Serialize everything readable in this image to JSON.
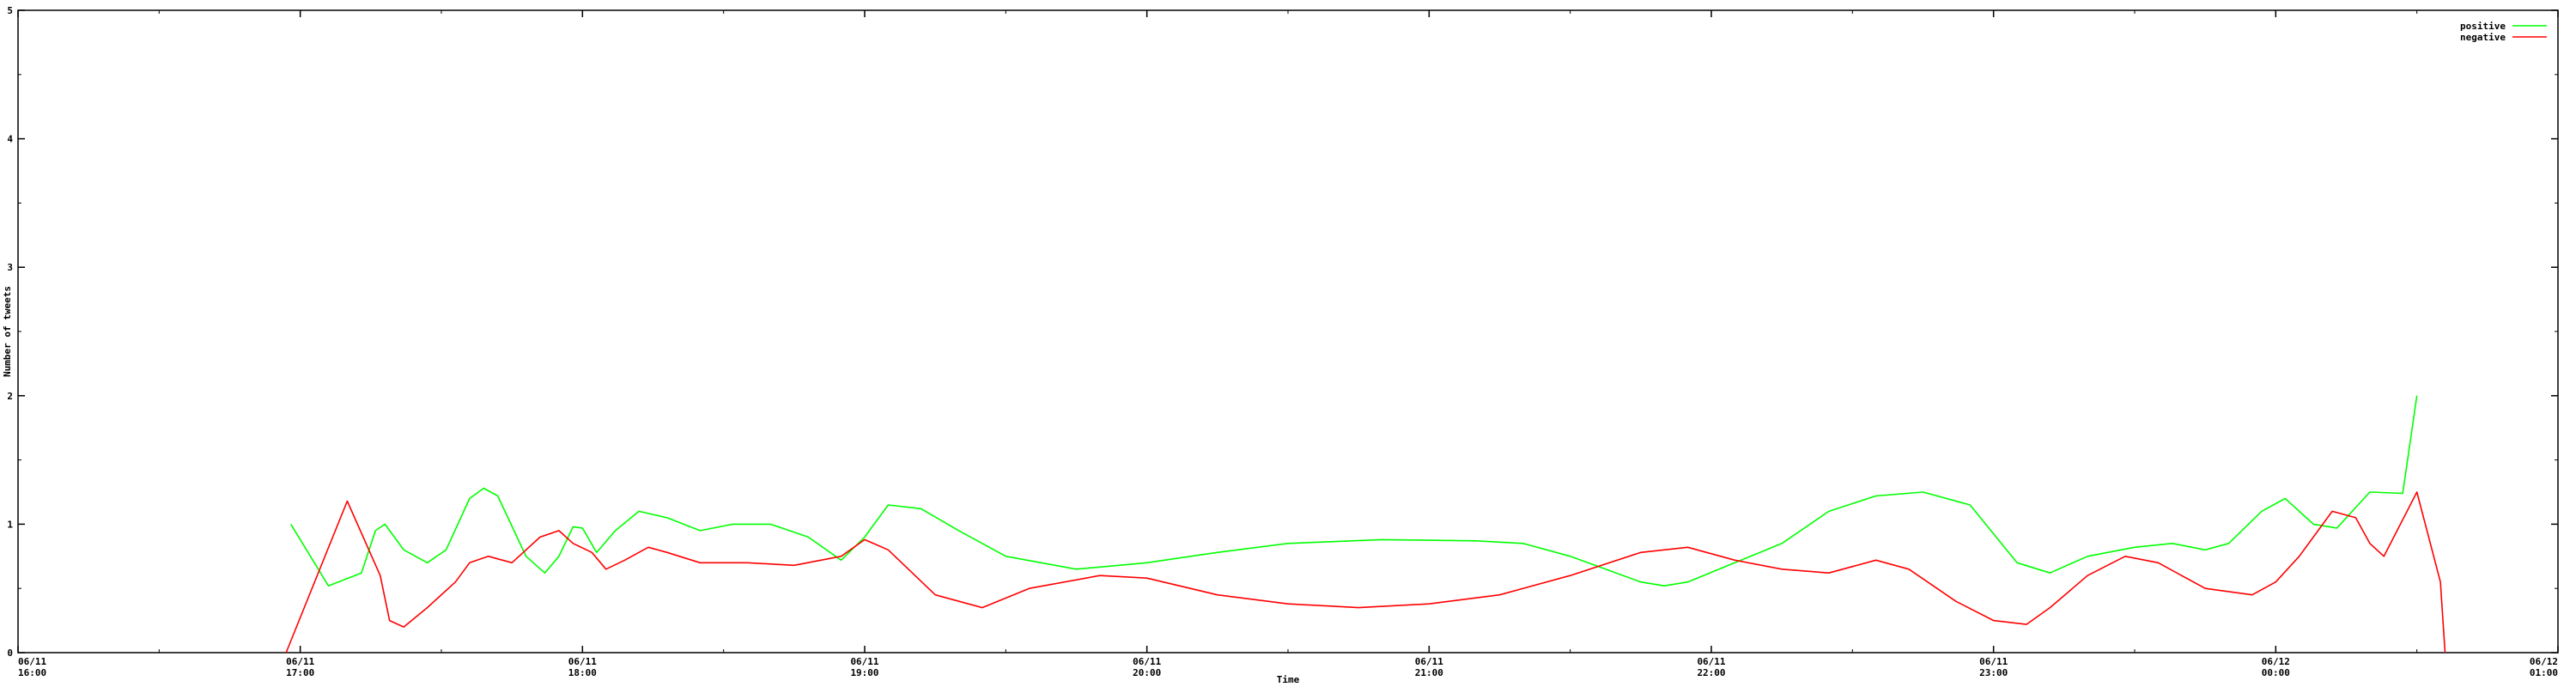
{
  "chart_data": {
    "type": "line",
    "title": "",
    "xlabel": "Time",
    "ylabel": "Number of tweets",
    "x_range": [
      "06/11 16:00",
      "06/12 01:00"
    ],
    "ylim": [
      0,
      5
    ],
    "grid": false,
    "legend_position": "top-right",
    "y_ticks": [
      "0",
      "1",
      "2",
      "3",
      "4",
      "5"
    ],
    "x_ticks": [
      {
        "date": "06/11",
        "time": "16:00"
      },
      {
        "date": "06/11",
        "time": "17:00"
      },
      {
        "date": "06/11",
        "time": "18:00"
      },
      {
        "date": "06/11",
        "time": "19:00"
      },
      {
        "date": "06/11",
        "time": "20:00"
      },
      {
        "date": "06/11",
        "time": "21:00"
      },
      {
        "date": "06/11",
        "time": "22:00"
      },
      {
        "date": "06/11",
        "time": "23:00"
      },
      {
        "date": "06/12",
        "time": "00:00"
      },
      {
        "date": "06/12",
        "time": "01:00"
      }
    ],
    "series": [
      {
        "name": "positive",
        "color": "#00ff00",
        "points": [
          [
            "06/11 16:58",
            1.0
          ],
          [
            "06/11 17:06",
            0.52
          ],
          [
            "06/11 17:13",
            0.62
          ],
          [
            "06/11 17:16",
            0.95
          ],
          [
            "06/11 17:18",
            1.0
          ],
          [
            "06/11 17:22",
            0.8
          ],
          [
            "06/11 17:27",
            0.7
          ],
          [
            "06/11 17:31",
            0.8
          ],
          [
            "06/11 17:36",
            1.2
          ],
          [
            "06/11 17:39",
            1.28
          ],
          [
            "06/11 17:42",
            1.22
          ],
          [
            "06/11 17:48",
            0.75
          ],
          [
            "06/11 17:52",
            0.62
          ],
          [
            "06/11 17:55",
            0.75
          ],
          [
            "06/11 17:58",
            0.98
          ],
          [
            "06/11 18:00",
            0.97
          ],
          [
            "06/11 18:03",
            0.78
          ],
          [
            "06/11 18:07",
            0.95
          ],
          [
            "06/11 18:12",
            1.1
          ],
          [
            "06/11 18:18",
            1.05
          ],
          [
            "06/11 18:25",
            0.95
          ],
          [
            "06/11 18:32",
            1.0
          ],
          [
            "06/11 18:40",
            1.0
          ],
          [
            "06/11 18:48",
            0.9
          ],
          [
            "06/11 18:55",
            0.72
          ],
          [
            "06/11 19:00",
            0.9
          ],
          [
            "06/11 19:05",
            1.15
          ],
          [
            "06/11 19:12",
            1.12
          ],
          [
            "06/11 19:20",
            0.95
          ],
          [
            "06/11 19:30",
            0.75
          ],
          [
            "06/11 19:45",
            0.65
          ],
          [
            "06/11 20:00",
            0.7
          ],
          [
            "06/11 20:15",
            0.78
          ],
          [
            "06/11 20:30",
            0.85
          ],
          [
            "06/11 20:50",
            0.88
          ],
          [
            "06/11 21:10",
            0.87
          ],
          [
            "06/11 21:20",
            0.85
          ],
          [
            "06/11 21:30",
            0.75
          ],
          [
            "06/11 21:45",
            0.55
          ],
          [
            "06/11 21:50",
            0.52
          ],
          [
            "06/11 21:55",
            0.55
          ],
          [
            "06/11 22:05",
            0.7
          ],
          [
            "06/11 22:15",
            0.85
          ],
          [
            "06/11 22:25",
            1.1
          ],
          [
            "06/11 22:35",
            1.22
          ],
          [
            "06/11 22:45",
            1.25
          ],
          [
            "06/11 22:55",
            1.15
          ],
          [
            "06/11 23:05",
            0.7
          ],
          [
            "06/11 23:12",
            0.62
          ],
          [
            "06/11 23:20",
            0.75
          ],
          [
            "06/11 23:30",
            0.82
          ],
          [
            "06/11 23:38",
            0.85
          ],
          [
            "06/11 23:45",
            0.8
          ],
          [
            "06/11 23:50",
            0.85
          ],
          [
            "06/11 23:57",
            1.1
          ],
          [
            "06/12 00:02",
            1.2
          ],
          [
            "06/12 00:08",
            1.0
          ],
          [
            "06/12 00:13",
            0.97
          ],
          [
            "06/12 00:20",
            1.25
          ],
          [
            "06/12 00:27",
            1.24
          ],
          [
            "06/12 00:30",
            2.0
          ]
        ]
      },
      {
        "name": "negative",
        "color": "#ff0000",
        "points": [
          [
            "06/11 16:57",
            0.0
          ],
          [
            "06/11 17:10",
            1.18
          ],
          [
            "06/11 17:17",
            0.6
          ],
          [
            "06/11 17:19",
            0.25
          ],
          [
            "06/11 17:22",
            0.2
          ],
          [
            "06/11 17:27",
            0.35
          ],
          [
            "06/11 17:33",
            0.55
          ],
          [
            "06/11 17:36",
            0.7
          ],
          [
            "06/11 17:40",
            0.75
          ],
          [
            "06/11 17:45",
            0.7
          ],
          [
            "06/11 17:51",
            0.9
          ],
          [
            "06/11 17:55",
            0.95
          ],
          [
            "06/11 17:58",
            0.85
          ],
          [
            "06/11 18:02",
            0.78
          ],
          [
            "06/11 18:05",
            0.65
          ],
          [
            "06/11 18:09",
            0.72
          ],
          [
            "06/11 18:14",
            0.82
          ],
          [
            "06/11 18:18",
            0.78
          ],
          [
            "06/11 18:25",
            0.7
          ],
          [
            "06/11 18:35",
            0.7
          ],
          [
            "06/11 18:45",
            0.68
          ],
          [
            "06/11 18:55",
            0.75
          ],
          [
            "06/11 19:00",
            0.88
          ],
          [
            "06/11 19:05",
            0.8
          ],
          [
            "06/11 19:15",
            0.45
          ],
          [
            "06/11 19:25",
            0.35
          ],
          [
            "06/11 19:35",
            0.5
          ],
          [
            "06/11 19:50",
            0.6
          ],
          [
            "06/11 20:00",
            0.58
          ],
          [
            "06/11 20:15",
            0.45
          ],
          [
            "06/11 20:30",
            0.38
          ],
          [
            "06/11 20:45",
            0.35
          ],
          [
            "06/11 21:00",
            0.38
          ],
          [
            "06/11 21:15",
            0.45
          ],
          [
            "06/11 21:30",
            0.6
          ],
          [
            "06/11 21:45",
            0.78
          ],
          [
            "06/11 21:55",
            0.82
          ],
          [
            "06/11 22:05",
            0.72
          ],
          [
            "06/11 22:15",
            0.65
          ],
          [
            "06/11 22:25",
            0.62
          ],
          [
            "06/11 22:35",
            0.72
          ],
          [
            "06/11 22:42",
            0.65
          ],
          [
            "06/11 22:52",
            0.4
          ],
          [
            "06/11 23:00",
            0.25
          ],
          [
            "06/11 23:07",
            0.22
          ],
          [
            "06/11 23:12",
            0.35
          ],
          [
            "06/11 23:20",
            0.6
          ],
          [
            "06/11 23:28",
            0.75
          ],
          [
            "06/11 23:35",
            0.7
          ],
          [
            "06/11 23:45",
            0.5
          ],
          [
            "06/11 23:55",
            0.45
          ],
          [
            "06/12 00:00",
            0.55
          ],
          [
            "06/12 00:05",
            0.75
          ],
          [
            "06/12 00:12",
            1.1
          ],
          [
            "06/12 00:17",
            1.05
          ],
          [
            "06/12 00:20",
            0.85
          ],
          [
            "06/12 00:23",
            0.75
          ],
          [
            "06/12 00:30",
            1.25
          ],
          [
            "06/12 00:35",
            0.55
          ],
          [
            "06/12 00:36",
            0.0
          ]
        ]
      }
    ]
  }
}
